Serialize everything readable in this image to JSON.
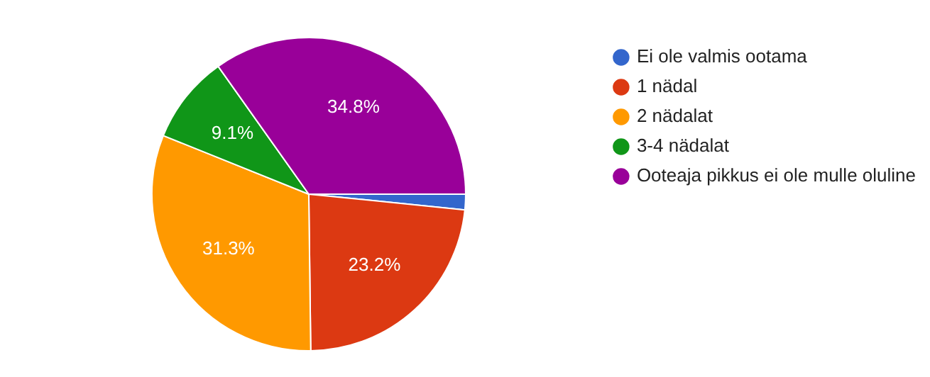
{
  "chart_data": {
    "type": "pie",
    "categories": [
      "Ei ole valmis ootama",
      "1 nädal",
      "2 nädalat",
      "3-4 nädalat",
      "Ooteaja pikkus ei ole mulle oluline"
    ],
    "values": [
      1.6,
      23.2,
      31.3,
      9.1,
      34.8
    ],
    "value_labels": [
      null,
      "23.2%",
      "31.3%",
      "9.1%",
      "34.8%"
    ],
    "colors": [
      "#3366cc",
      "#dc3912",
      "#ff9900",
      "#109618",
      "#990099"
    ],
    "legend": "right"
  }
}
